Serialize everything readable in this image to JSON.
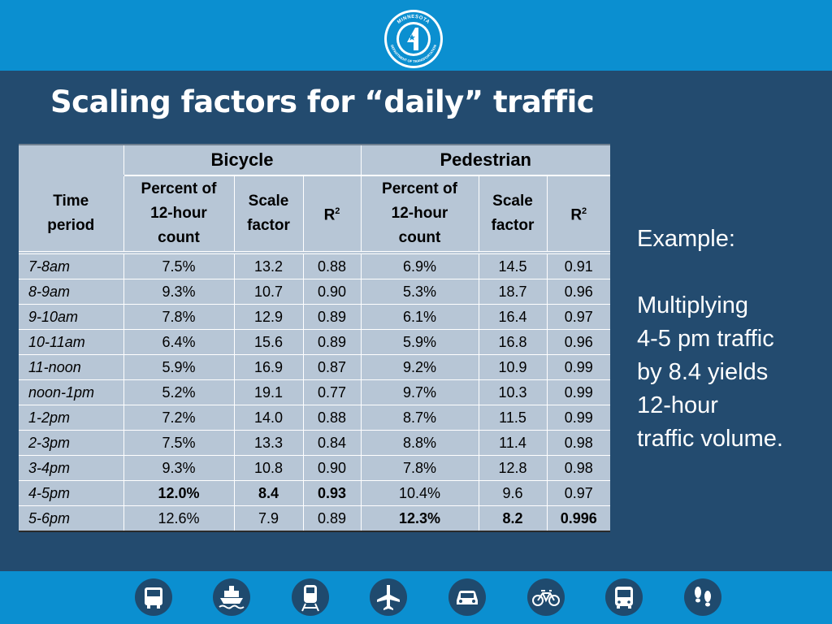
{
  "slide": {
    "title": "Scaling factors for “daily” traffic"
  },
  "table": {
    "group_bicycle": "Bicycle",
    "group_pedestrian": "Pedestrian",
    "col_time_line1": "Time",
    "col_time_line2": "period",
    "col_percent_line1": "Percent of",
    "col_percent_line2": "12-hour",
    "col_percent_line3": "count",
    "col_scale_line1": "Scale",
    "col_scale_line2": "factor",
    "col_r": "R",
    "col_r_sup": "2",
    "rows": [
      {
        "time": "7-8am",
        "b_pct": "7.5%",
        "b_scale": "13.2",
        "b_r2": "0.88",
        "p_pct": "6.9%",
        "p_scale": "14.5",
        "p_r2": "0.91"
      },
      {
        "time": "8-9am",
        "b_pct": "9.3%",
        "b_scale": "10.7",
        "b_r2": "0.90",
        "p_pct": "5.3%",
        "p_scale": "18.7",
        "p_r2": "0.96"
      },
      {
        "time": "9-10am",
        "b_pct": "7.8%",
        "b_scale": "12.9",
        "b_r2": "0.89",
        "p_pct": "6.1%",
        "p_scale": "16.4",
        "p_r2": "0.97"
      },
      {
        "time": "10-11am",
        "b_pct": "6.4%",
        "b_scale": "15.6",
        "b_r2": "0.89",
        "p_pct": "5.9%",
        "p_scale": "16.8",
        "p_r2": "0.96"
      },
      {
        "time": "11-noon",
        "b_pct": "5.9%",
        "b_scale": "16.9",
        "b_r2": "0.87",
        "p_pct": "9.2%",
        "p_scale": "10.9",
        "p_r2": "0.99"
      },
      {
        "time": "noon-1pm",
        "b_pct": "5.2%",
        "b_scale": "19.1",
        "b_r2": "0.77",
        "p_pct": "9.7%",
        "p_scale": "10.3",
        "p_r2": "0.99"
      },
      {
        "time": "1-2pm",
        "b_pct": "7.2%",
        "b_scale": "14.0",
        "b_r2": "0.88",
        "p_pct": "8.7%",
        "p_scale": "11.5",
        "p_r2": "0.99"
      },
      {
        "time": "2-3pm",
        "b_pct": "7.5%",
        "b_scale": "13.3",
        "b_r2": "0.84",
        "p_pct": "8.8%",
        "p_scale": "11.4",
        "p_r2": "0.98"
      },
      {
        "time": "3-4pm",
        "b_pct": "9.3%",
        "b_scale": "10.8",
        "b_r2": "0.90",
        "p_pct": "7.8%",
        "p_scale": "12.8",
        "p_r2": "0.98"
      },
      {
        "time": "4-5pm",
        "b_pct": "12.0%",
        "b_scale": "8.4",
        "b_r2": "0.93",
        "p_pct": "10.4%",
        "p_scale": "9.6",
        "p_r2": "0.97"
      },
      {
        "time": "5-6pm",
        "b_pct": "12.6%",
        "b_scale": "7.9",
        "b_r2": "0.89",
        "p_pct": "12.3%",
        "p_scale": "8.2",
        "p_r2": "0.996"
      }
    ]
  },
  "example": {
    "heading": "Example:",
    "lines": [
      "Multiplying",
      "4-5 pm traffic",
      "by 8.4 yields",
      "12-hour",
      "traffic volume."
    ]
  },
  "logo": {
    "name": "mndot-logo",
    "text_top": "MINNESOTA",
    "text_bottom": "DEPARTMENT OF TRANSPORTATION"
  },
  "footer_icons": [
    "bus-icon",
    "ferry-icon",
    "train-icon",
    "airplane-icon",
    "car-icon",
    "bicycle-icon",
    "bus-front-icon",
    "footprints-icon"
  ],
  "colors": {
    "background": "#234b6f",
    "bar": "#0b8fd0",
    "table": "#b7c6d6",
    "text": "#ffffff"
  }
}
